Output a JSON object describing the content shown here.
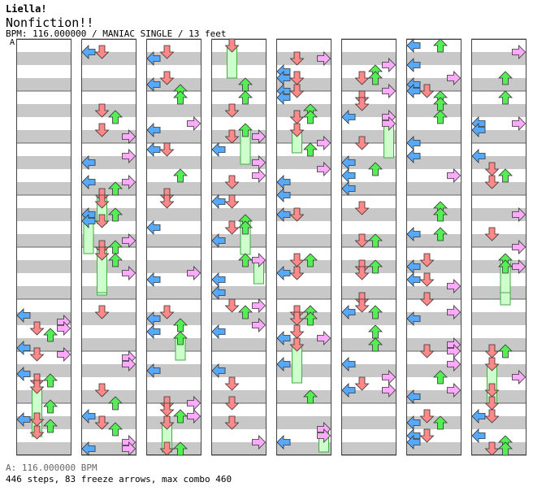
{
  "song": {
    "artist": "Liella!",
    "title": "Nonfiction!!",
    "info": "BPM: 116.000000 / MANIAC SINGLE / 13 feet"
  },
  "chart_marker": "A",
  "footer": {
    "bpm_line": "A: 116.000000 BPM",
    "stats_line": "446 steps, 83 freeze arrows, max combo 460"
  },
  "colors": {
    "band_grey": "#c8c8c8",
    "column_border": "#444444",
    "left_arrow": "#55aaff",
    "down_arrow": "#ff8888",
    "up_arrow": "#55ee55",
    "right_arrow": "#ffaaff",
    "freeze_fill": "#ccffcc",
    "freeze_border": "#44aa44"
  },
  "columns": [
    {
      "notes": [],
      "freezes": []
    },
    {
      "notes": [],
      "freezes": []
    },
    {
      "notes": [],
      "freezes": []
    },
    {
      "notes": [],
      "freezes": []
    },
    {
      "notes": [],
      "freezes": []
    },
    {
      "notes": [],
      "freezes": []
    },
    {
      "notes": [],
      "freezes": []
    },
    {
      "notes": [],
      "freezes": []
    }
  ]
}
